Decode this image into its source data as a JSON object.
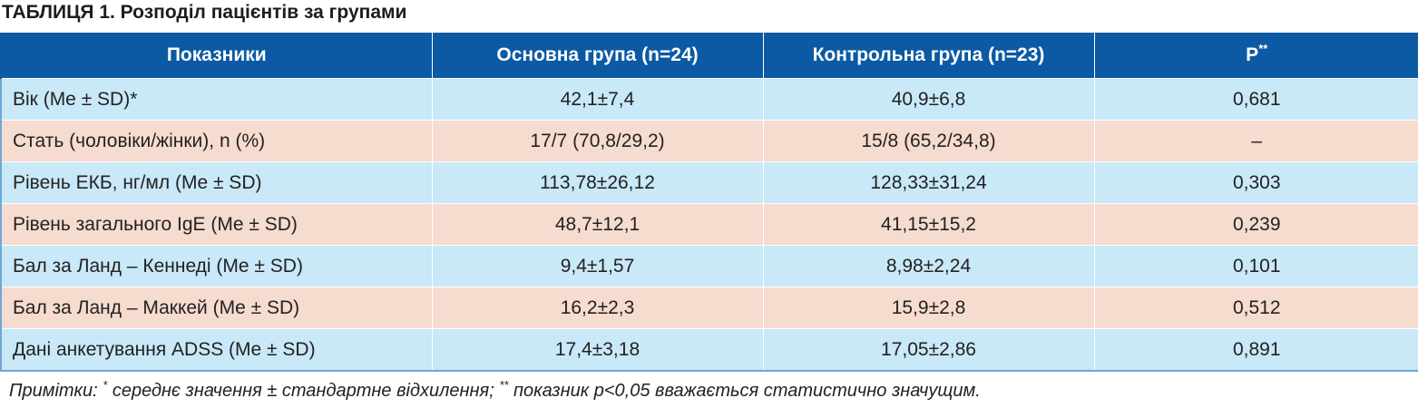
{
  "title": "ТАБЛИЦЯ 1. Розподіл пацієнтів за групами",
  "table": {
    "header": [
      "Показники",
      "Основна група (n=24)",
      "Контрольна група (n=23)",
      {
        "text": "P",
        "sup": "**"
      }
    ],
    "rows": [
      [
        "Вік (Me ± SD)*",
        "42,1±7,4",
        "40,9±6,8",
        "0,681"
      ],
      [
        "Стать (чоловіки/жінки), n (%)",
        "17/7 (70,8/29,2)",
        "15/8 (65,2/34,8)",
        "–"
      ],
      [
        "Рівень ЕКБ, нг/мл (Me ± SD)",
        "113,78±26,12",
        "128,33±31,24",
        "0,303"
      ],
      [
        "Рівень загального IgE (Me ± SD)",
        "48,7±12,1",
        "41,15±15,2",
        "0,239"
      ],
      [
        "Бал за Ланд – Кеннеді (Me ± SD)",
        "9,4±1,57",
        "8,98±2,24",
        "0,101"
      ],
      [
        "Бал за Ланд – Маккей (Me ± SD)",
        "16,2±2,3",
        "15,9±2,8",
        "0,512"
      ],
      [
        "Дані анкетування ADSS (Me ± SD)",
        "17,4±3,18",
        "17,05±2,86",
        "0,891"
      ]
    ]
  },
  "notes": [
    "Примітки: ",
    "*",
    " середнє значення ± стандартне відхилення; ",
    "**",
    " показник p<0,05 вважається статистично значущим."
  ]
}
